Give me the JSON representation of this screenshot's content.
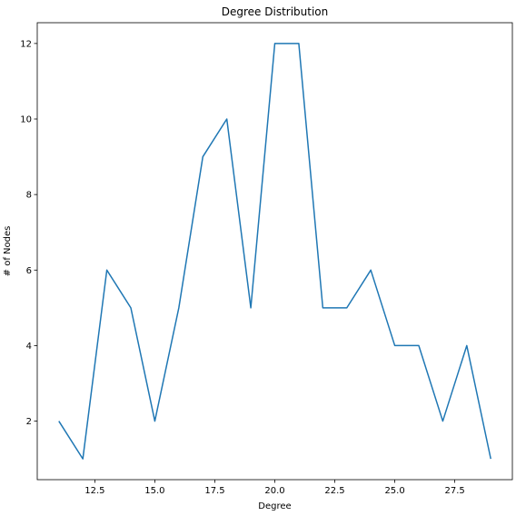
{
  "chart_data": {
    "type": "line",
    "title": "Degree Distribution",
    "xlabel": "Degree",
    "ylabel": "# of Nodes",
    "x": [
      11,
      12,
      13,
      14,
      15,
      16,
      17,
      18,
      19,
      20,
      21,
      22,
      23,
      24,
      25,
      26,
      27,
      28,
      29
    ],
    "series": [
      {
        "values": [
          2,
          1,
          6,
          5,
          2,
          5,
          9,
          10,
          5,
          12,
          12,
          5,
          5,
          6,
          4,
          4,
          2,
          4,
          1
        ],
        "color": "#1f77b4"
      }
    ],
    "xlim": [
      10.1,
      29.9
    ],
    "ylim": [
      0.45,
      12.55
    ],
    "xticks": [
      12.5,
      15.0,
      17.5,
      20.0,
      22.5,
      25.0,
      27.5
    ],
    "xtick_labels": [
      "12.5",
      "15.0",
      "17.5",
      "20.0",
      "22.5",
      "25.0",
      "27.5"
    ],
    "yticks": [
      2,
      4,
      6,
      8,
      10,
      12
    ],
    "ytick_labels": [
      "2",
      "4",
      "6",
      "8",
      "10",
      "12"
    ],
    "grid": false,
    "legend": "none"
  }
}
